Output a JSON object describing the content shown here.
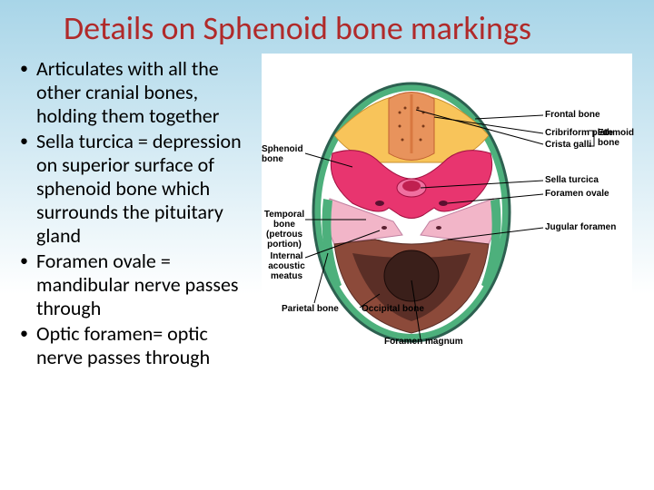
{
  "title": "Details on Sphenoid bone markings",
  "title_color": "#b02a2a",
  "title_fontsize": 36,
  "background_gradient": [
    "#a8d5e8",
    "#ffffff"
  ],
  "bullets": [
    "Articulates with all the other cranial bones, holding them together",
    "Sella turcica = depression on superior surface of sphenoid bone which surrounds the pituitary gland",
    "Foramen ovale = mandibular nerve passes through",
    "Optic foramen= optic nerve passes through"
  ],
  "bullet_fontsize": 22,
  "diagram": {
    "type": "anatomical-illustration",
    "background": "#ffffff",
    "labels": {
      "l_sphenoid": "Sphenoid\nbone",
      "l_temporal": "Temporal bone\n(petrous portion)",
      "l_acoustic": "Internal\nacoustic meatus",
      "l_parietal": "Parietal bone",
      "l_occipital": "Occipital bone",
      "l_foramenmag": "Foramen magnum",
      "r_frontal": "Frontal bone",
      "r_cribriform": "Cribriform plate",
      "r_crista": "Crista galli",
      "r_ethmoid": "Ethmoid\nbone",
      "r_sella": "Sella turcica",
      "r_fovale": "Foramen ovale",
      "r_jugular": "Jugular foramen"
    },
    "colors": {
      "frontal": "#f8c45a",
      "ethmoid": "#e8935c",
      "sphenoid": "#e8356f",
      "temporal_petrous": "#f2b5c8",
      "parietal": "#4db07c",
      "occipital": "#8c4a3a",
      "occipital_dark": "#5a2e26",
      "foramen_magnum": "#3a1f1a",
      "outline": "#2d6050",
      "crista": "#d87840"
    },
    "label_fontsize": 10
  }
}
